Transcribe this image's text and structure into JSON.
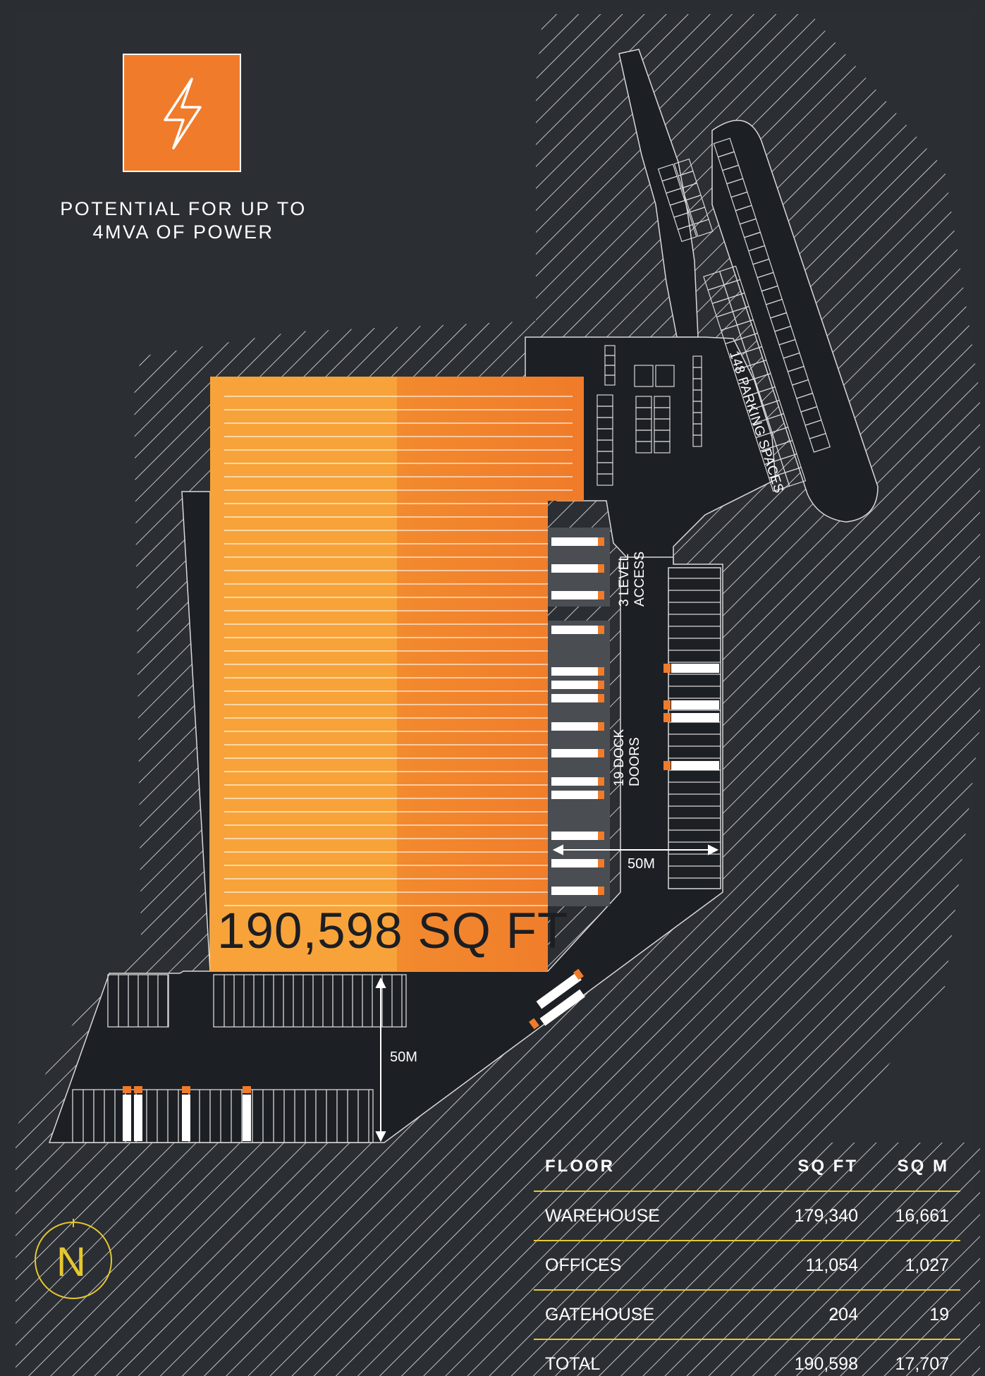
{
  "power_note": "POTENTIAL FOR UP TO 4MVA OF POWER",
  "power_icon": "lightning-bolt-icon",
  "building_area": "190,598 SQ FT",
  "parking_label": "148 PARKING SPACES",
  "level_access_label": [
    "3 LEVEL",
    "ACCESS"
  ],
  "dock_doors_label": [
    "19 DOCK",
    "DOORS"
  ],
  "yard_depth_east": "50M",
  "yard_depth_south": "50M",
  "compass_letter": "N",
  "colors": {
    "background": "#2a2d32",
    "roads": "#1c1f24",
    "building": "#f7a33a",
    "building_dark": "#f07b2a",
    "accent": "#e6c82e",
    "lines": "#ffffff"
  },
  "schedule": {
    "headers": [
      "FLOOR",
      "SQ FT",
      "SQ M"
    ],
    "rows": [
      [
        "WAREHOUSE",
        "179,340",
        "16,661"
      ],
      [
        "OFFICES",
        "11,054",
        "1,027"
      ],
      [
        "GATEHOUSE",
        "204",
        "19"
      ],
      [
        "TOTAL",
        "190,598",
        "17,707"
      ]
    ]
  }
}
